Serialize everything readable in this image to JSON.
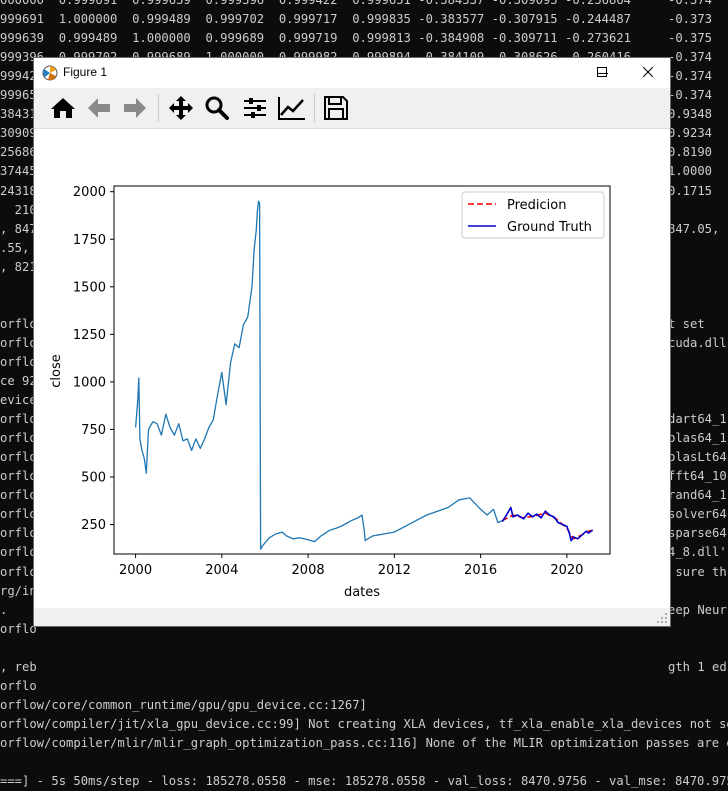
{
  "terminal": {
    "lines": [
      "000000  0.999691  0.999639  0.999396  0.999422  0.999651 -0.384337 -0.309095 -0.256864",
      "999691  1.000000  0.999489  0.999702  0.999717  0.999835 -0.383577 -0.307915 -0.244487",
      "999639  0.999489  1.000000  0.999689  0.999719  0.999813 -0.384908 -0.309711 -0.273621",
      "999396  0.999702  0.999689  1.000000  0.999982  0.999894 -0.384109 -0.308626 -0.260416",
      "99942",
      "99965",
      "38431",
      "30909",
      "25686",
      "37445",
      "24318",
      "  210.",
      ", 847",
      ".55, ",
      ", 821",
      "",
      "",
      "orflo",
      "orflo",
      "orflo",
      "ce 92",
      "evice",
      "orflo",
      "orflo",
      "orflo",
      "orflo",
      "orflo",
      "orflo",
      "orflo",
      "orflo",
      "orflo",
      "rg/in",
      ".",
      "orflo",
      "",
      ", reb",
      "orflo",
      "orflow/core/common_runtime/gpu/gpu_device.cc:1267]",
      "orflow/compiler/jit/xla_gpu_device.cc:99] Not creating XLA devices, tf_xla_enable_xla_devices not set",
      "orflow/compiler/mlir/mlir_graph_optimization_pass.cc:116] None of the MLIR optimization passes are enabl",
      "",
      "===] - 5s 50ms/step - loss: 185278.0558 - mse: 185278.0558 - val_loss: 8470.9756 - val_mse: 8470.9756"
    ],
    "right_lines": [
      "-0.374",
      "-0.373",
      "-0.375",
      "-0.374",
      "-0.374",
      "-0.374",
      "0.9348",
      "0.9234",
      "0.8190",
      "1.0000",
      "0.1715",
      "",
      "847.05,",
      "",
      "",
      "",
      "",
      "t set",
      "cuda.dll",
      "",
      "",
      "",
      "dart64_1",
      "blas64_1",
      "blasLt64",
      "fft64_10",
      "rand64_1",
      "solver64",
      "sparse64",
      "4_8.dll'",
      " sure th",
      "",
      "eep Neur",
      "",
      "",
      "gth 1 ed"
    ]
  },
  "window": {
    "title": "Figure 1",
    "minimize_icon": "minimize-icon",
    "maximize_icon": "maximize-icon",
    "close_icon": "close-icon"
  },
  "toolbar": {
    "buttons": [
      "home-icon",
      "back-arrow-icon",
      "forward-arrow-icon",
      "pan-move-icon",
      "zoom-magnifier-icon",
      "configure-subplots-icon",
      "edit-axis-curves-icon",
      "save-floppy-icon"
    ]
  },
  "chart_data": {
    "type": "line",
    "xlabel": "dates",
    "ylabel": "close",
    "xlim": [
      1999.0,
      2022.0
    ],
    "ylim": [
      95,
      2030
    ],
    "x_ticks": [
      2000,
      2004,
      2008,
      2012,
      2016,
      2020
    ],
    "y_ticks": [
      250,
      500,
      750,
      1000,
      1250,
      1500,
      1750,
      2000
    ],
    "legend_position": "upper right",
    "grid": false,
    "series": [
      {
        "name": "Predicion",
        "color": "#ff0000",
        "style": "dashed",
        "x": [
          2017.0,
          2017.5,
          2018.0,
          2018.5,
          2019.0,
          2019.5,
          2020.0,
          2020.3,
          2020.6,
          2021.0,
          2021.2
        ],
        "y": [
          270,
          300,
          285,
          295,
          310,
          280,
          230,
          175,
          190,
          215,
          220
        ]
      },
      {
        "name": "Ground Truth",
        "color": "#0000cc",
        "style": "solid",
        "x": [
          2017.0,
          2017.2,
          2017.4,
          2017.5,
          2017.7,
          2018.0,
          2018.2,
          2018.4,
          2018.6,
          2018.8,
          2019.0,
          2019.2,
          2019.4,
          2019.6,
          2019.8,
          2020.0,
          2020.1,
          2020.2,
          2020.3,
          2020.5,
          2020.7,
          2020.9,
          2021.0,
          2021.2
        ],
        "y": [
          265,
          300,
          340,
          290,
          300,
          280,
          310,
          290,
          305,
          285,
          320,
          300,
          290,
          260,
          250,
          240,
          210,
          165,
          185,
          175,
          195,
          215,
          205,
          220
        ]
      },
      {
        "name": "",
        "color": "#1f77b4",
        "style": "solid",
        "x": [
          2000.0,
          2000.1,
          2000.15,
          2000.2,
          2000.3,
          2000.4,
          2000.5,
          2000.6,
          2000.8,
          2001.0,
          2001.2,
          2001.4,
          2001.6,
          2001.8,
          2002.0,
          2002.2,
          2002.4,
          2002.6,
          2002.8,
          2003.0,
          2003.2,
          2003.4,
          2003.6,
          2003.8,
          2004.0,
          2004.2,
          2004.4,
          2004.6,
          2004.8,
          2005.0,
          2005.2,
          2005.4,
          2005.5,
          2005.6,
          2005.65,
          2005.7,
          2005.75,
          2005.8,
          2005.9,
          2006.2,
          2006.5,
          2006.8,
          2007.0,
          2007.3,
          2007.6,
          2008.0,
          2008.3,
          2008.6,
          2009.0,
          2009.3,
          2009.6,
          2010.0,
          2010.3,
          2010.5,
          2010.6,
          2010.65,
          2010.7,
          2011.0,
          2011.5,
          2012.0,
          2012.5,
          2013.0,
          2013.5,
          2014.0,
          2014.5,
          2015.0,
          2015.5,
          2016.0,
          2016.3,
          2016.6,
          2016.8,
          2017.0
        ],
        "y": [
          760,
          900,
          1020,
          700,
          640,
          600,
          520,
          750,
          790,
          780,
          720,
          830,
          760,
          720,
          780,
          690,
          700,
          640,
          700,
          650,
          700,
          760,
          800,
          930,
          1050,
          880,
          1100,
          1200,
          1180,
          1300,
          1340,
          1500,
          1700,
          1800,
          1900,
          1950,
          1940,
          120,
          140,
          180,
          200,
          210,
          190,
          175,
          180,
          170,
          160,
          190,
          220,
          230,
          245,
          270,
          285,
          300,
          220,
          165,
          170,
          190,
          200,
          210,
          240,
          270,
          300,
          320,
          340,
          380,
          390,
          330,
          300,
          330,
          260,
          270
        ]
      }
    ]
  }
}
